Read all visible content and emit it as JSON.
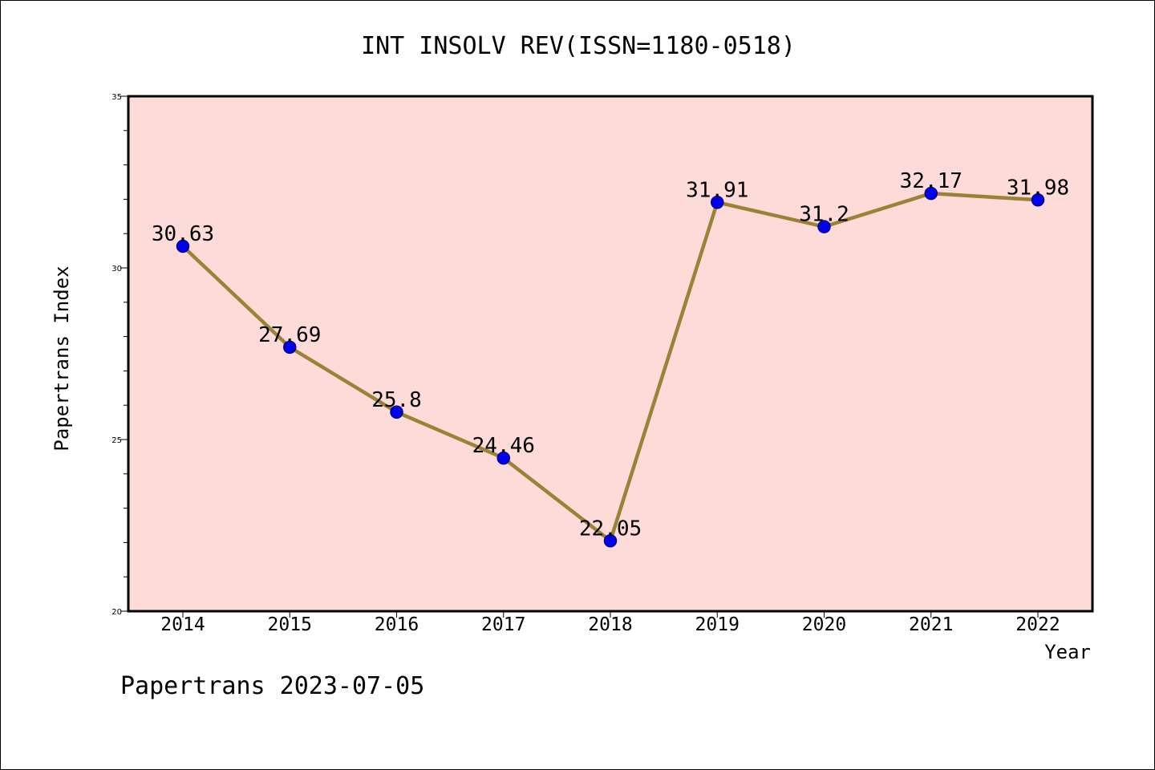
{
  "chart_data": {
    "type": "line",
    "title": "INT INSOLV REV(ISSN=1180-0518)",
    "xlabel": "Year",
    "ylabel": "Papertrans Index",
    "categories": [
      "2014",
      "2015",
      "2016",
      "2017",
      "2018",
      "2019",
      "2020",
      "2021",
      "2022"
    ],
    "series": [
      {
        "values": [
          30.63,
          27.69,
          25.8,
          24.46,
          22.05,
          31.91,
          31.2,
          32.17,
          31.98
        ],
        "data_labels": [
          "30.63",
          "27.69",
          "25.8",
          "24.46",
          "22.05",
          "31.91",
          "31.2",
          "32.17",
          "31.98"
        ]
      }
    ],
    "ylim": [
      20,
      35
    ],
    "yticks": [
      "20",
      "25",
      "30",
      "35"
    ],
    "grid": false,
    "colors": {
      "plot_background": "#fddbd8",
      "line": "#9b8236",
      "marker": "#0000ee",
      "marker_edge": "#00008b"
    }
  },
  "footer": {
    "text": "Papertrans 2023-07-05"
  }
}
